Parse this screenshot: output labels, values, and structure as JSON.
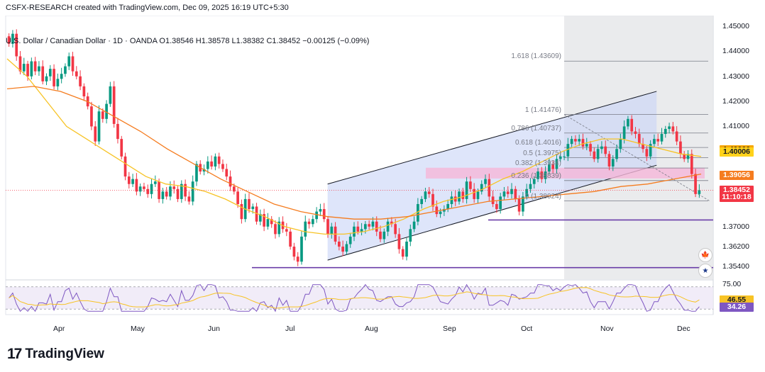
{
  "header": {
    "text": "CSFX-RESEARCH created with TradingView.com, Dec 09, 2025 16:19 UTC+5:30"
  },
  "ohlc": {
    "text": "U.S. Dollar / Canadian Dollar · 1D · OANDA  O1.38546  H1.38578  L1.38382  C1.38452  −0.00125 (−0.09%)"
  },
  "colors": {
    "up": "#089981",
    "down": "#f23645",
    "ma_fast": "#f7c325",
    "ma_slow": "#f57c1f",
    "channel": "#c8d3f7",
    "channel_line": "#131722",
    "resistance_zone": "#f5b7d8",
    "support_line": "#6a3da8",
    "fib_line": "#787b86",
    "rsi_line": "#7e57c2",
    "rsi_ma": "#f7c325",
    "rsi_band": "#ede7f6",
    "shade": "#e6e7ea"
  },
  "chart_data": {
    "type": "candlestick",
    "title": "U.S. Dollar / Canadian Dollar · 1D · OANDA",
    "ylim": [
      1.349,
      1.452
    ],
    "y_ticks": [
      "1.45000",
      "1.44000",
      "1.43000",
      "1.42000",
      "1.41000",
      "1.40000",
      "1.37000",
      "1.36200",
      "1.35400"
    ],
    "x_ticks": [
      "Apr",
      "May",
      "Jun",
      "Jul",
      "Aug",
      "Sep",
      "Oct",
      "Nov",
      "Dec"
    ],
    "last_close": 1.38452,
    "badges": [
      {
        "text": "1.40066",
        "value": 1.40066,
        "color": "#f7a600",
        "text_color": "#131722"
      },
      {
        "text": "1.40006",
        "value": 1.40006,
        "color": "#ffd21a",
        "text_color": "#131722"
      },
      {
        "text": "1.39056",
        "value": 1.39056,
        "color": "#f57c1f",
        "text_color": "#ffffff"
      },
      {
        "text": "1.38452",
        "value": 1.38452,
        "color": "#f23645",
        "text_color": "#ffffff"
      },
      {
        "text": "11:10:18",
        "value": 1.3818,
        "color": "#f23645",
        "text_color": "#ffffff"
      }
    ],
    "fib_levels": [
      {
        "label": "1.618 (1.43609)",
        "value": 1.43609
      },
      {
        "label": "1 (1.41476)",
        "value": 1.41476
      },
      {
        "label": "0.786 (1.40737)",
        "value": 1.40737
      },
      {
        "label": "0.618 (1.4016)",
        "value": 1.4016
      },
      {
        "label": "0.5 (1.3975)",
        "value": 1.3975
      },
      {
        "label": "0.382 (1.3934)",
        "value": 1.3934
      },
      {
        "label": "0.236 (1.38839)",
        "value": 1.38839
      },
      {
        "label": "0 (1.38024)",
        "value": 1.38024
      }
    ],
    "horizontal_lines": [
      1.37264,
      1.35362
    ],
    "resistance_zone": [
      1.3892,
      1.3935
    ],
    "channel": {
      "upper": [
        [
          0.455,
          1.387
        ],
        [
          0.92,
          1.424
        ]
      ],
      "lower": [
        [
          0.455,
          1.3566
        ],
        [
          0.92,
          1.3945
        ]
      ]
    },
    "closes": [
      1.443,
      1.447,
      1.438,
      1.432,
      1.435,
      1.43,
      1.436,
      1.432,
      1.434,
      1.428,
      1.43,
      1.433,
      1.426,
      1.429,
      1.431,
      1.434,
      1.438,
      1.432,
      1.43,
      1.426,
      1.422,
      1.418,
      1.41,
      1.404,
      1.416,
      1.413,
      1.419,
      1.426,
      1.411,
      1.405,
      1.398,
      1.39,
      1.387,
      1.389,
      1.384,
      1.386,
      1.385,
      1.383,
      1.387,
      1.388,
      1.381,
      1.384,
      1.382,
      1.386,
      1.385,
      1.381,
      1.387,
      1.382,
      1.38,
      1.388,
      1.395,
      1.392,
      1.393,
      1.396,
      1.394,
      1.398,
      1.395,
      1.393,
      1.39,
      1.386,
      1.384,
      1.379,
      1.373,
      1.381,
      1.377,
      1.378,
      1.372,
      1.375,
      1.37,
      1.373,
      1.371,
      1.367,
      1.372,
      1.369,
      1.368,
      1.362,
      1.358,
      1.356,
      1.366,
      1.372,
      1.371,
      1.373,
      1.376,
      1.377,
      1.373,
      1.367,
      1.37,
      1.364,
      1.362,
      1.36,
      1.363,
      1.366,
      1.37,
      1.368,
      1.369,
      1.371,
      1.37,
      1.372,
      1.368,
      1.365,
      1.368,
      1.372,
      1.371,
      1.367,
      1.361,
      1.358,
      1.364,
      1.369,
      1.372,
      1.379,
      1.381,
      1.384,
      1.383,
      1.378,
      1.375,
      1.376,
      1.377,
      1.379,
      1.382,
      1.38,
      1.384,
      1.381,
      1.388,
      1.385,
      1.381,
      1.384,
      1.387,
      1.389,
      1.382,
      1.379,
      1.377,
      1.382,
      1.384,
      1.383,
      1.385,
      1.381,
      1.376,
      1.382,
      1.385,
      1.387,
      1.389,
      1.392,
      1.389,
      1.392,
      1.395,
      1.393,
      1.397,
      1.398,
      1.398,
      1.403,
      1.405,
      1.404,
      1.405,
      1.402,
      1.403,
      1.4,
      1.397,
      1.401,
      1.402,
      1.399,
      1.394,
      1.397,
      1.401,
      1.405,
      1.41,
      1.413,
      1.408,
      1.407,
      1.403,
      1.401,
      1.398,
      1.403,
      1.405,
      1.404,
      1.407,
      1.409,
      1.41,
      1.408,
      1.404,
      1.399,
      1.397,
      1.399,
      1.391,
      1.383,
      1.3845
    ],
    "ma_fast_y": [
      1.437,
      1.43,
      1.42,
      1.41,
      1.405,
      1.4,
      1.395,
      1.39,
      1.387,
      1.386,
      1.384,
      1.381,
      1.377,
      1.374,
      1.37,
      1.368,
      1.367,
      1.367,
      1.368,
      1.37,
      1.373,
      1.377,
      1.38,
      1.382,
      1.385,
      1.389,
      1.392,
      1.396,
      1.4,
      1.403,
      1.405,
      1.405,
      1.403,
      1.401,
      1.399,
      1.398
    ],
    "ma_slow_y": [
      1.425,
      1.426,
      1.424,
      1.42,
      1.414,
      1.408,
      1.401,
      1.395,
      1.389,
      1.384,
      1.379,
      1.376,
      1.374,
      1.373,
      1.373,
      1.374,
      1.376,
      1.378,
      1.38,
      1.381,
      1.382,
      1.383,
      1.384,
      1.386,
      1.387,
      1.389,
      1.391
    ],
    "rsi": {
      "ylim": [
        20,
        80
      ],
      "ticks": [
        "75.00",
        "46.55",
        "34.26"
      ],
      "last_rsi": 34.26,
      "last_rsi_ma": 46.55
    }
  }
}
